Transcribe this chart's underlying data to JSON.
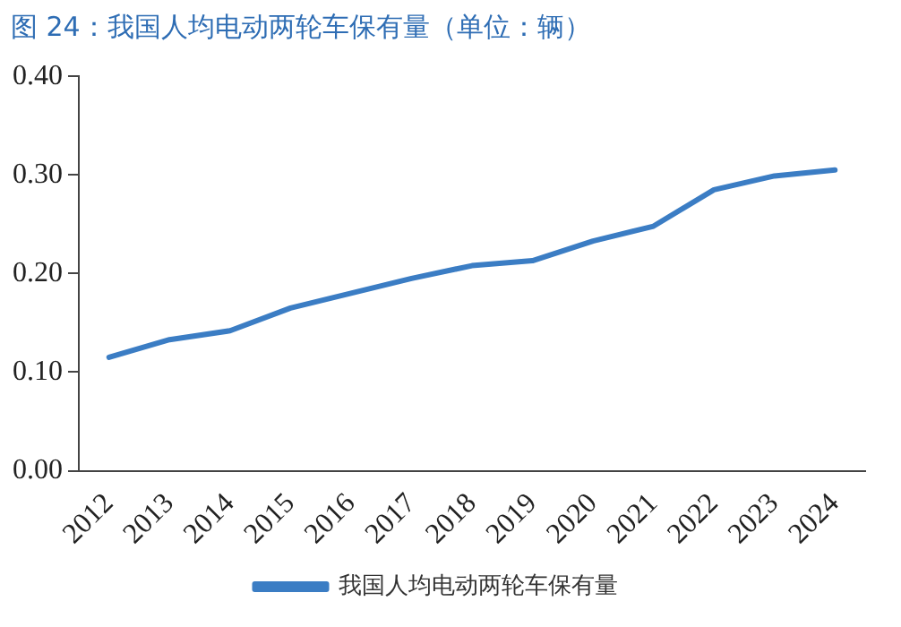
{
  "chart_data": {
    "type": "line",
    "title": "图 24：我国人均电动两轮车保有量（单位：辆）",
    "categories": [
      "2012",
      "2013",
      "2014",
      "2015",
      "2016",
      "2017",
      "2018",
      "2019",
      "2020",
      "2021",
      "2022",
      "2023",
      "2024"
    ],
    "series": [
      {
        "name": "我国人均电动两轮车保有量",
        "color": "#3b7dc4",
        "values": [
          0.115,
          0.133,
          0.142,
          0.165,
          0.18,
          0.195,
          0.208,
          0.213,
          0.233,
          0.248,
          0.285,
          0.299,
          0.305
        ]
      }
    ],
    "ylim": [
      0,
      0.4
    ],
    "yticks": [
      {
        "value": 0,
        "label": "0.00"
      },
      {
        "value": 0.1,
        "label": "0.10"
      },
      {
        "value": 0.2,
        "label": "0.20"
      },
      {
        "value": 0.3,
        "label": "0.30"
      },
      {
        "value": 0.4,
        "label": "0.40"
      }
    ],
    "grid": false,
    "legend": "bottom",
    "marker": "none",
    "line_style": "solid"
  }
}
